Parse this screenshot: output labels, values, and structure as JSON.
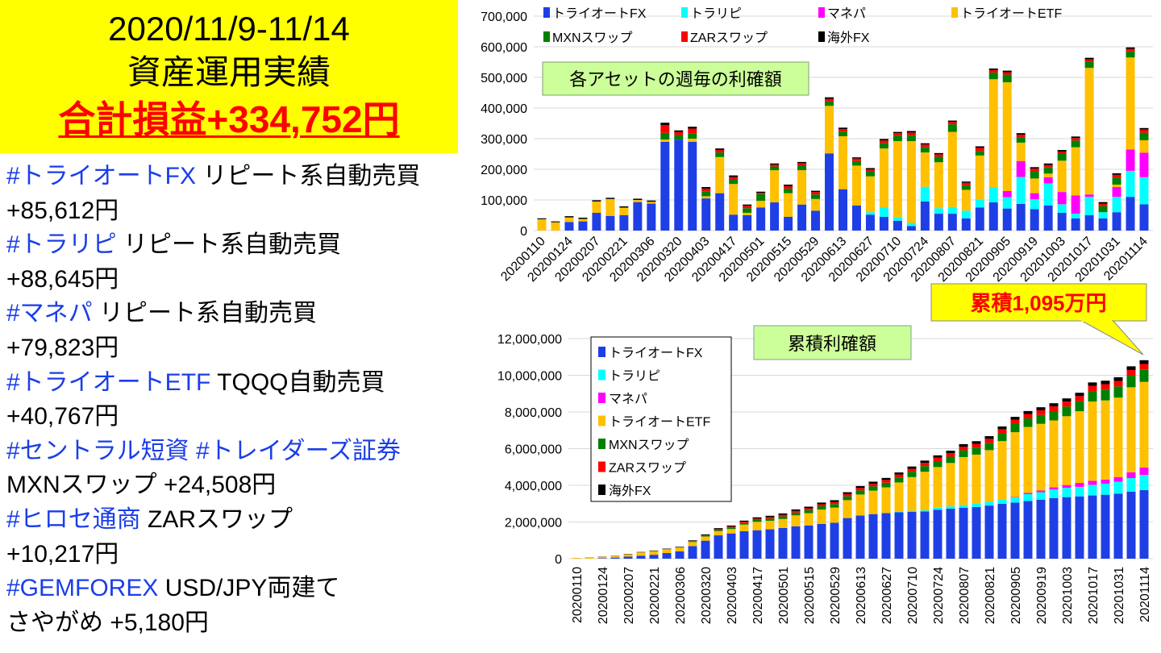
{
  "header": {
    "date_range": "2020/11/9-11/14",
    "title": "資産運用実績",
    "total": "合計損益+334,752円"
  },
  "lines": [
    [
      {
        "tag": "#トライオートFX",
        "text": " リピート系自動売買"
      }
    ],
    [
      {
        "tag": "",
        "text": "+85,612円"
      }
    ],
    [
      {
        "tag": "#トラリピ",
        "text": " リピート系自動売買"
      }
    ],
    [
      {
        "tag": "",
        "text": "+88,645円"
      }
    ],
    [
      {
        "tag": "#マネパ",
        "text": " リピート系自動売買"
      }
    ],
    [
      {
        "tag": "",
        "text": "+79,823円"
      }
    ],
    [
      {
        "tag": "#トライオートETF",
        "text": " TQQQ自動売買"
      }
    ],
    [
      {
        "tag": "",
        "text": "+40,767円"
      }
    ],
    [
      {
        "tag": "#セントラル短資 #トレイダーズ証券",
        "text": ""
      }
    ],
    [
      {
        "tag": "",
        "text": "MXNスワップ +24,508円"
      }
    ],
    [
      {
        "tag": "#ヒロセ通商",
        "text": " ZARスワップ"
      }
    ],
    [
      {
        "tag": "",
        "text": "+10,217円"
      }
    ],
    [
      {
        "tag": "#GEMFOREX",
        "text": " USD/JPY両建て"
      }
    ],
    [
      {
        "tag": "",
        "text": "さやがめ +5,180円"
      }
    ]
  ],
  "colors": {
    "header_bg": "#ffff00",
    "total": "#ff0000",
    "tag": "#1a3ee8",
    "label_box": "#ccff99",
    "callout": "#ffff00"
  },
  "chart_data": [
    {
      "type": "bar",
      "stacked": true,
      "title": "各アセットの週毎の利確額",
      "ylim": [
        0,
        700000
      ],
      "yticks": [
        "0",
        "100,000",
        "200,000",
        "300,000",
        "400,000",
        "500,000",
        "600,000",
        "700,000"
      ],
      "xtick_labels": [
        "20200110",
        "20200124",
        "20200207",
        "20200221",
        "20200306",
        "20200320",
        "20200403",
        "20200417",
        "20200501",
        "20200515",
        "20200529",
        "20200613",
        "20200627",
        "20200710",
        "20200724",
        "20200807",
        "20200821",
        "20200905",
        "20200919",
        "20201003",
        "20201017",
        "20201031",
        "20201114"
      ],
      "grid": true,
      "legend": "top",
      "series": [
        {
          "name": "トライオートFX",
          "color": "#1f3fe6"
        },
        {
          "name": "トラリピ",
          "color": "#00ffff"
        },
        {
          "name": "マネパ",
          "color": "#ff00ff"
        },
        {
          "name": "トライオートETF",
          "color": "#ffc000"
        },
        {
          "name": "MXNスワップ",
          "color": "#008000"
        },
        {
          "name": "ZARスワップ",
          "color": "#ff0000"
        },
        {
          "name": "海外FX",
          "color": "#000000"
        }
      ],
      "weekly_values": [
        [
          0,
          0,
          0,
          37000,
          0,
          0,
          3000
        ],
        [
          0,
          0,
          0,
          27000,
          0,
          0,
          3000
        ],
        [
          28000,
          0,
          0,
          15000,
          0,
          0,
          4000
        ],
        [
          30000,
          0,
          0,
          8000,
          0,
          0,
          4000
        ],
        [
          58000,
          0,
          0,
          37000,
          0,
          0,
          4000
        ],
        [
          48000,
          0,
          0,
          55000,
          0,
          0,
          4000
        ],
        [
          50000,
          0,
          0,
          25000,
          0,
          0,
          4000
        ],
        [
          93000,
          0,
          0,
          7000,
          0,
          0,
          4000
        ],
        [
          88000,
          0,
          0,
          6000,
          0,
          0,
          4000
        ],
        [
          290000,
          0,
          0,
          7000,
          22000,
          25000,
          8000
        ],
        [
          297000,
          0,
          0,
          0,
          15000,
          10000,
          5000
        ],
        [
          290000,
          0,
          0,
          10000,
          18000,
          15000,
          6000
        ],
        [
          105000,
          0,
          0,
          7000,
          15000,
          10000,
          5000
        ],
        [
          122000,
          0,
          0,
          118000,
          15000,
          8000,
          5000
        ],
        [
          52000,
          0,
          0,
          100000,
          15000,
          8000,
          5000
        ],
        [
          50000,
          0,
          0,
          8000,
          15000,
          8000,
          4000
        ],
        [
          75000,
          0,
          0,
          22000,
          22000,
          4000,
          4000
        ],
        [
          92000,
          0,
          0,
          105000,
          12000,
          6000,
          4000
        ],
        [
          45000,
          0,
          0,
          77000,
          15000,
          8000,
          5000
        ],
        [
          85000,
          0,
          0,
          112000,
          15000,
          8000,
          4000
        ],
        [
          65000,
          0,
          0,
          38000,
          15000,
          8000,
          4000
        ],
        [
          252000,
          0,
          0,
          155000,
          15000,
          8000,
          5000
        ],
        [
          135000,
          0,
          0,
          173000,
          15000,
          8000,
          5000
        ],
        [
          82000,
          0,
          0,
          130000,
          15000,
          8000,
          4000
        ],
        [
          52000,
          8000,
          0,
          117000,
          15000,
          8000,
          4000
        ],
        [
          45000,
          30000,
          0,
          193000,
          18000,
          8000,
          5000
        ],
        [
          32000,
          12000,
          0,
          248000,
          18000,
          8000,
          4000
        ],
        [
          15000,
          10000,
          0,
          267000,
          18000,
          10000,
          5000
        ],
        [
          95000,
          48000,
          0,
          112000,
          18000,
          8000,
          4000
        ],
        [
          55000,
          18000,
          0,
          150000,
          18000,
          8000,
          4000
        ],
        [
          55000,
          22000,
          0,
          245000,
          25000,
          8000,
          4000
        ],
        [
          40000,
          25000,
          0,
          68000,
          15000,
          8000,
          4000
        ],
        [
          75000,
          25000,
          0,
          145000,
          15000,
          10000,
          5000
        ],
        [
          92000,
          50000,
          0,
          352000,
          22000,
          8000,
          5000
        ],
        [
          72000,
          37000,
          20000,
          355000,
          25000,
          8000,
          5000
        ],
        [
          87000,
          88000,
          52000,
          60000,
          18000,
          8000,
          5000
        ],
        [
          70000,
          32000,
          20000,
          48000,
          22000,
          10000,
          5000
        ],
        [
          82000,
          72000,
          20000,
          12000,
          20000,
          8000,
          5000
        ],
        [
          58000,
          28000,
          40000,
          102000,
          22000,
          8000,
          5000
        ],
        [
          40000,
          15000,
          60000,
          157000,
          22000,
          8000,
          5000
        ],
        [
          50000,
          60000,
          8000,
          413000,
          20000,
          8000,
          5000
        ],
        [
          40000,
          20000,
          0,
          0,
          20000,
          8000,
          5000
        ],
        [
          60000,
          50000,
          32000,
          8000,
          22000,
          10000,
          5000
        ],
        [
          110000,
          85000,
          70000,
          300000,
          20000,
          8000,
          5000
        ],
        [
          85612,
          88645,
          79823,
          40767,
          24508,
          10217,
          5180
        ]
      ]
    },
    {
      "type": "bar",
      "stacked": true,
      "cumulative": true,
      "title": "累積利確額",
      "ylim": [
        0,
        12000000
      ],
      "yticks": [
        "0",
        "2,000,000",
        "4,000,000",
        "6,000,000",
        "8,000,000",
        "10,000,000",
        "12,000,000"
      ],
      "xtick_labels": [
        "20200110",
        "20200124",
        "20200207",
        "20200221",
        "20200306",
        "20200320",
        "20200403",
        "20200417",
        "20200501",
        "20200515",
        "20200529",
        "20200613",
        "20200627",
        "20200710",
        "20200724",
        "20200807",
        "20200821",
        "20200905",
        "20200919",
        "20201003",
        "20201017",
        "20201031",
        "20201114"
      ],
      "grid": true,
      "legend": "top-left",
      "annotation": "累積1,095万円"
    }
  ]
}
